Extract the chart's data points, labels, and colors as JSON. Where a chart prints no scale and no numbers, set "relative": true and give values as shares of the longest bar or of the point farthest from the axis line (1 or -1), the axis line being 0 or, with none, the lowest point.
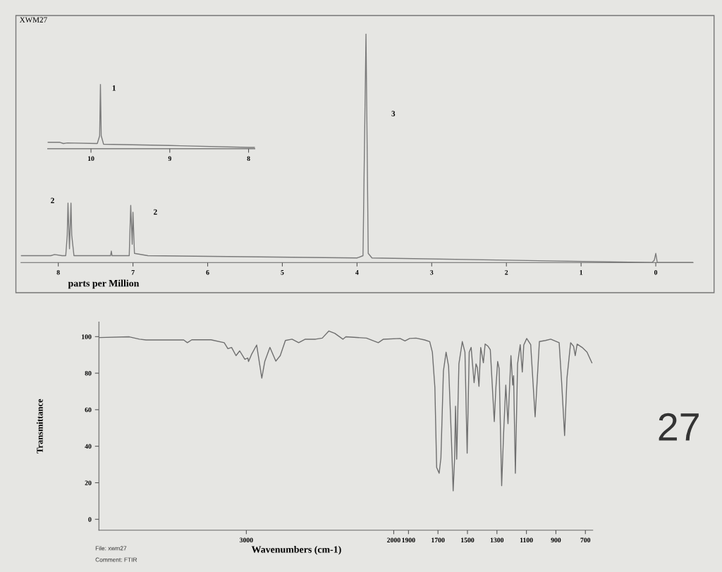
{
  "chart_data": [
    {
      "type": "line",
      "title": "XWM27",
      "xlabel": "parts per Million",
      "relative": true,
      "x": [
        8.5,
        8.1,
        8.05,
        7.95,
        7.9,
        7.88,
        7.87,
        7.85,
        7.83,
        7.82,
        7.79,
        7.3,
        7.29,
        7.28,
        7.05,
        7.03,
        7.01,
        7.0,
        6.98,
        6.8,
        4.0,
        3.92,
        3.88,
        3.85,
        3.8,
        0.05,
        0.02,
        0.0,
        -0.02,
        -0.5
      ],
      "series": [
        {
          "color": "#7a7a7a",
          "values": [
            0.03,
            0.03,
            0.035,
            0.03,
            0.03,
            0.12,
            0.26,
            0.06,
            0.26,
            0.12,
            0.03,
            0.03,
            0.05,
            0.03,
            0.03,
            0.25,
            0.08,
            0.22,
            0.04,
            0.03,
            0.02,
            0.03,
            1.0,
            0.04,
            0.02,
            0.0,
            0.01,
            0.04,
            0.0,
            0.0
          ]
        }
      ],
      "xlim": [
        8.5,
        -0.5
      ],
      "xticks": [
        8,
        7,
        6,
        5,
        4,
        3,
        2,
        1,
        0
      ],
      "annotations": [
        "2",
        "2",
        "3"
      ]
    },
    {
      "type": "line",
      "relative": true,
      "x": [
        10.55,
        10.4,
        10.35,
        10.3,
        9.92,
        9.89,
        9.88,
        9.87,
        9.84,
        9.0,
        8.0,
        7.92
      ],
      "series": [
        {
          "color": "#7a7a7a",
          "values": [
            0.1,
            0.1,
            0.08,
            0.09,
            0.08,
            0.2,
            1.0,
            0.2,
            0.07,
            0.05,
            0.02,
            0.02
          ]
        }
      ],
      "xlim": [
        10.55,
        7.92
      ],
      "xticks": [
        10,
        9,
        8
      ],
      "annotations": [
        "1"
      ]
    },
    {
      "type": "line",
      "xlabel": "Wavenumbers (cm-1)",
      "ylabel": "Transmittance",
      "x": [
        4000,
        3794,
        3725,
        3680,
        3425,
        3400,
        3370,
        3240,
        3150,
        3125,
        3100,
        3070,
        3045,
        3010,
        2990,
        2985,
        2965,
        2930,
        2895,
        2875,
        2840,
        2800,
        2770,
        2735,
        2690,
        2645,
        2600,
        2530,
        2485,
        2440,
        2400,
        2345,
        2325,
        2185,
        2105,
        2070,
        1957,
        1924,
        1892,
        1849,
        1790,
        1756,
        1738,
        1721,
        1709,
        1692,
        1680,
        1663,
        1645,
        1628,
        1610,
        1597,
        1587,
        1581,
        1573,
        1558,
        1535,
        1517,
        1502,
        1488,
        1475,
        1455,
        1442,
        1433,
        1422,
        1410,
        1392,
        1380,
        1360,
        1345,
        1318,
        1307,
        1295,
        1285,
        1268,
        1255,
        1240,
        1225,
        1205,
        1193,
        1187,
        1175,
        1160,
        1142,
        1128,
        1118,
        1098,
        1071,
        1041,
        1012,
        971,
        935,
        878,
        861,
        841,
        825,
        800,
        780,
        769,
        756,
        722,
        689,
        656
      ],
      "series": [
        {
          "color": "#6e6e6e",
          "values": [
            99.5,
            99.9,
            98.6,
            98.2,
            98.2,
            96.7,
            98.3,
            98.3,
            96.7,
            93.4,
            94.1,
            89.6,
            92.2,
            87.6,
            88.3,
            86.4,
            90.2,
            95.4,
            77.3,
            86.4,
            94.1,
            86.6,
            89.6,
            97.9,
            98.6,
            96.7,
            98.6,
            98.6,
            99.2,
            103.1,
            101.8,
            98.6,
            99.9,
            99.2,
            96.7,
            98.6,
            99.0,
            97.7,
            99.0,
            99.2,
            98.2,
            97.3,
            91.5,
            72.2,
            28.4,
            25.2,
            33.6,
            81.2,
            91.5,
            83.8,
            46.5,
            15.6,
            33.6,
            61.9,
            32.9,
            85.1,
            97.3,
            91.5,
            36.2,
            91.5,
            94.1,
            74.8,
            85.1,
            83.1,
            72.8,
            94.1,
            85.7,
            96.0,
            94.7,
            92.8,
            53.5,
            72.2,
            86.4,
            82.5,
            18.4,
            46.5,
            73.5,
            52.3,
            89.6,
            73.5,
            78.6,
            25.2,
            85.1,
            95.6,
            80.6,
            95.4,
            99.0,
            95.6,
            56.1,
            97.3,
            97.9,
            98.6,
            96.7,
            74.8,
            45.8,
            77.3,
            96.7,
            94.7,
            89.6,
            95.9,
            94.1,
            91.5,
            85.7
          ]
        }
      ],
      "xlim": [
        4000,
        650
      ],
      "xticks": [
        3000,
        2000,
        1900,
        1700,
        1500,
        1300,
        1100,
        900,
        700
      ],
      "ylim": [
        -6,
        108
      ],
      "yticks": [
        0,
        20,
        40,
        60,
        80,
        100
      ],
      "annotations": [
        "File: xwm27",
        "Comment: FTIR",
        "27"
      ]
    }
  ]
}
